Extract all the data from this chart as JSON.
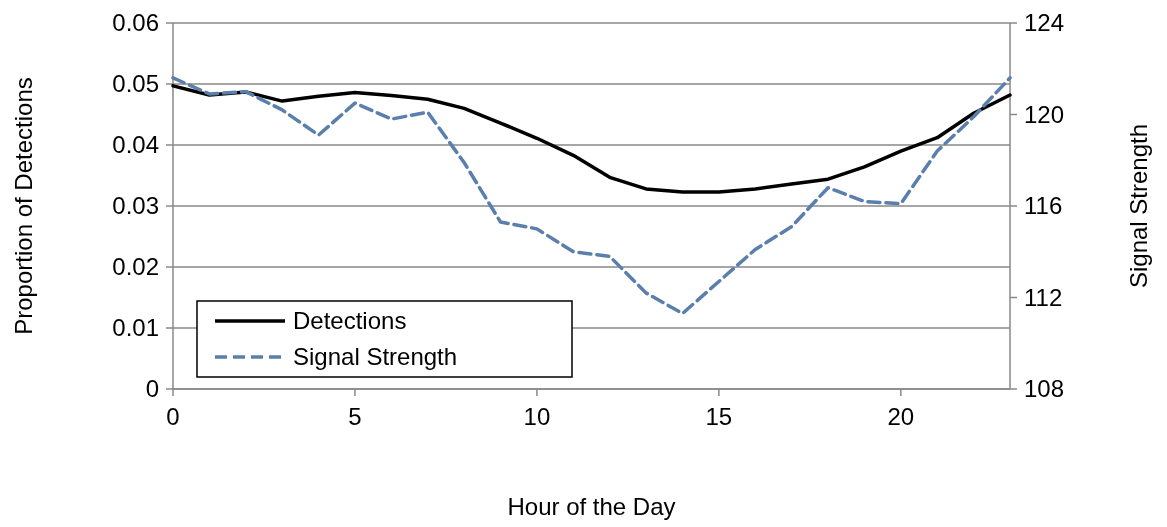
{
  "chart_data": {
    "type": "line",
    "xlabel": "Hour of the Day",
    "ylabel": "Proportion of Detections",
    "y2label": "Signal Strength",
    "x": [
      0,
      1,
      2,
      3,
      4,
      5,
      6,
      7,
      8,
      9,
      10,
      11,
      12,
      13,
      14,
      15,
      16,
      17,
      18,
      19,
      20,
      21,
      22,
      23
    ],
    "series": [
      {
        "name": "Detections",
        "color": "#000000",
        "line_style": "solid",
        "values": [
          0.0497,
          0.0482,
          0.0487,
          0.0472,
          0.048,
          0.0486,
          0.0481,
          0.0475,
          0.046,
          0.0436,
          0.0411,
          0.0383,
          0.0347,
          0.0328,
          0.0323,
          0.0323,
          0.0328,
          0.0336,
          0.0344,
          0.0364,
          0.039,
          0.0412,
          0.0452,
          0.0482
        ]
      },
      {
        "name": "Signal Strength",
        "color": "#5a7fad",
        "line_style": "dashed",
        "axis": "y2",
        "values": [
          121.6,
          120.9,
          121.0,
          120.2,
          119.1,
          120.5,
          119.8,
          120.1,
          117.9,
          115.3,
          115.0,
          114.0,
          113.8,
          112.2,
          111.3,
          112.7,
          114.1,
          115.1,
          116.8,
          116.2,
          116.1,
          118.4,
          119.9,
          121.6
        ]
      }
    ],
    "xlim": [
      0,
      23
    ],
    "xticks": [
      0,
      5,
      10,
      15,
      20
    ],
    "ylim": [
      0,
      0.06
    ],
    "yticks": [
      0,
      0.01,
      0.02,
      0.03,
      0.04,
      0.05,
      0.06
    ],
    "y2lim": [
      108,
      124
    ],
    "y2ticks": [
      108,
      112,
      116,
      120,
      124
    ],
    "grid": "y",
    "legend": "bottom left",
    "marker": "none"
  }
}
